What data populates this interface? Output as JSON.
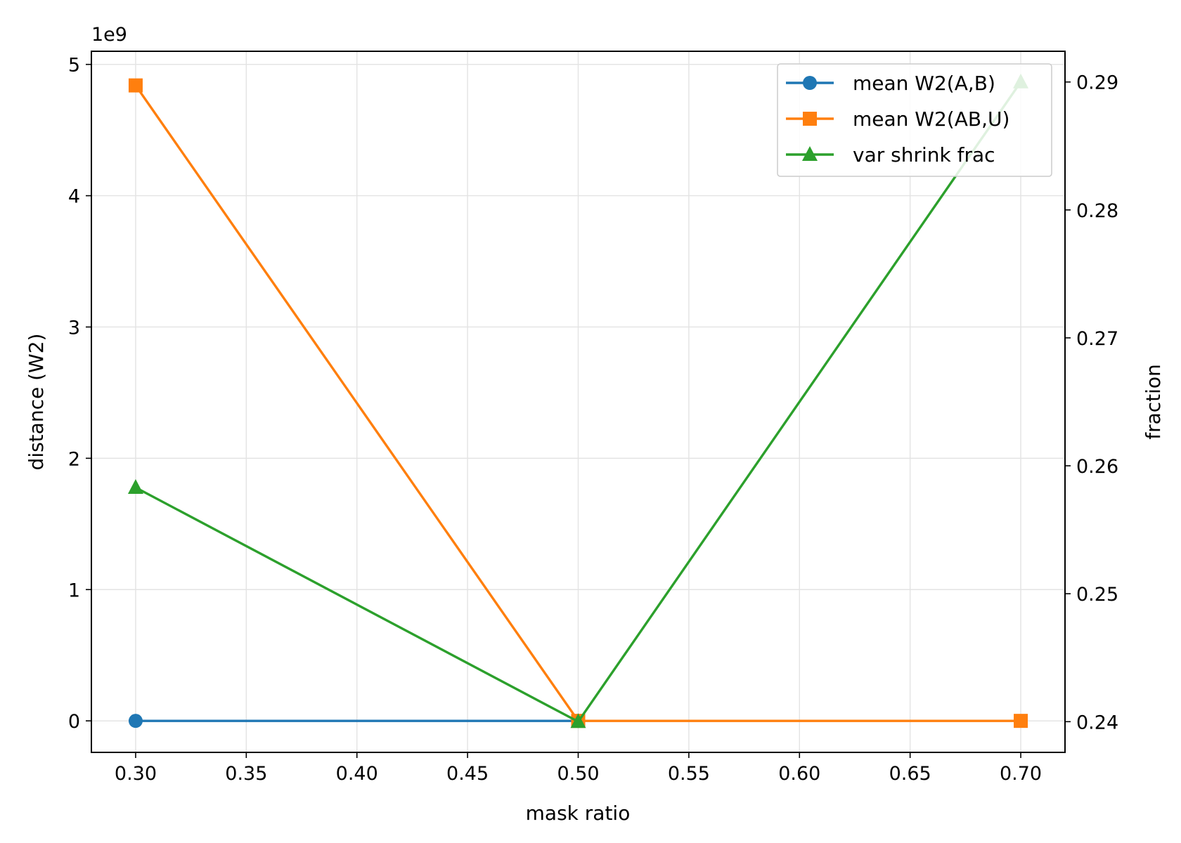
{
  "chart_data": {
    "type": "line",
    "title": "",
    "xlabel": "mask ratio",
    "ylabel": "distance (W2)",
    "y2label": "fraction",
    "y_offset_label": "1e9",
    "xlim": [
      0.28,
      0.72
    ],
    "ylim": [
      -0.24,
      5.1
    ],
    "y2lim": [
      0.2376,
      0.2924
    ],
    "xticks": [
      0.3,
      0.35,
      0.4,
      0.45,
      0.5,
      0.55,
      0.6,
      0.65,
      0.7
    ],
    "xtick_labels": [
      "0.30",
      "0.35",
      "0.40",
      "0.45",
      "0.50",
      "0.55",
      "0.60",
      "0.65",
      "0.70"
    ],
    "yticks": [
      0,
      1,
      2,
      3,
      4,
      5
    ],
    "ytick_labels": [
      "0",
      "1",
      "2",
      "3",
      "4",
      "5"
    ],
    "y2ticks": [
      0.24,
      0.25,
      0.26,
      0.27,
      0.28,
      0.29
    ],
    "y2tick_labels": [
      "0.24",
      "0.25",
      "0.26",
      "0.27",
      "0.28",
      "0.29"
    ],
    "grid": true,
    "legend_position": "top-right",
    "series": [
      {
        "name": "mean W2(A,B)",
        "axis": "left",
        "color": "#1f77b4",
        "marker": "circle",
        "x": [
          0.3,
          0.5
        ],
        "y": [
          0,
          0
        ]
      },
      {
        "name": "mean W2(AB,U)",
        "axis": "left",
        "color": "#ff7f0e",
        "marker": "square",
        "x": [
          0.3,
          0.5,
          0.7
        ],
        "y": [
          4.84,
          0,
          0
        ]
      },
      {
        "name": "var shrink frac",
        "axis": "right",
        "color": "#2ca02c",
        "marker": "triangle",
        "x": [
          0.3,
          0.5,
          0.7
        ],
        "y": [
          0.2583,
          0.24,
          0.29
        ]
      }
    ]
  }
}
